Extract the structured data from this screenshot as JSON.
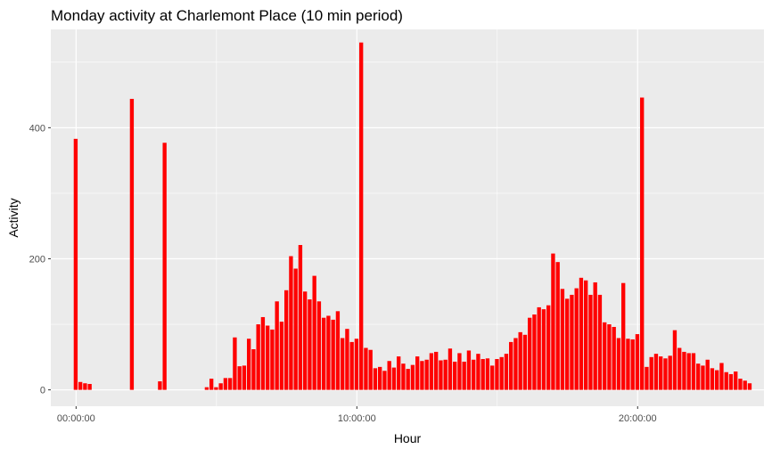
{
  "chart_data": {
    "type": "bar",
    "title": "Monday activity at Charlemont Place (10 min period)",
    "xlabel": "Hour",
    "ylabel": "Activity",
    "x_unit": "hours since 00:00:00",
    "x_ticks": [
      {
        "value": 0,
        "label": "00:00:00"
      },
      {
        "value": 10,
        "label": "10:00:00"
      },
      {
        "value": 20,
        "label": "20:00:00"
      }
    ],
    "y_ticks": [
      {
        "value": 0,
        "label": "0"
      },
      {
        "value": 200,
        "label": "200"
      },
      {
        "value": 400,
        "label": "400"
      }
    ],
    "xlim": [
      -0.9,
      24.5
    ],
    "ylim": [
      -25,
      550
    ],
    "bar_color": "#ff0000",
    "panel_background": "#ebebeb",
    "grid": true,
    "bin_hours": 0.1667,
    "values": [
      383,
      12,
      10,
      9,
      0,
      0,
      0,
      0,
      0,
      0,
      0,
      0,
      444,
      0,
      0,
      0,
      0,
      0,
      13,
      377,
      0,
      0,
      0,
      0,
      0,
      0,
      0,
      0,
      4,
      17,
      4,
      10,
      18,
      18,
      80,
      36,
      37,
      78,
      62,
      100,
      111,
      98,
      92,
      135,
      104,
      152,
      204,
      185,
      221,
      150,
      138,
      174,
      135,
      110,
      113,
      107,
      120,
      79,
      93,
      73,
      78,
      530,
      64,
      61,
      33,
      35,
      29,
      44,
      34,
      51,
      40,
      32,
      38,
      51,
      44,
      46,
      56,
      58,
      45,
      46,
      63,
      43,
      56,
      43,
      60,
      46,
      55,
      47,
      48,
      37,
      47,
      50,
      55,
      73,
      79,
      88,
      84,
      110,
      115,
      126,
      123,
      129,
      208,
      195,
      154,
      139,
      145,
      155,
      171,
      167,
      145,
      164,
      145,
      103,
      100,
      96,
      79,
      163,
      78,
      77,
      85,
      446,
      35,
      50,
      55,
      51,
      48,
      52,
      91,
      64,
      58,
      56,
      56,
      40,
      37,
      46,
      33,
      30,
      41,
      27,
      24,
      28,
      17,
      14,
      10
    ]
  }
}
